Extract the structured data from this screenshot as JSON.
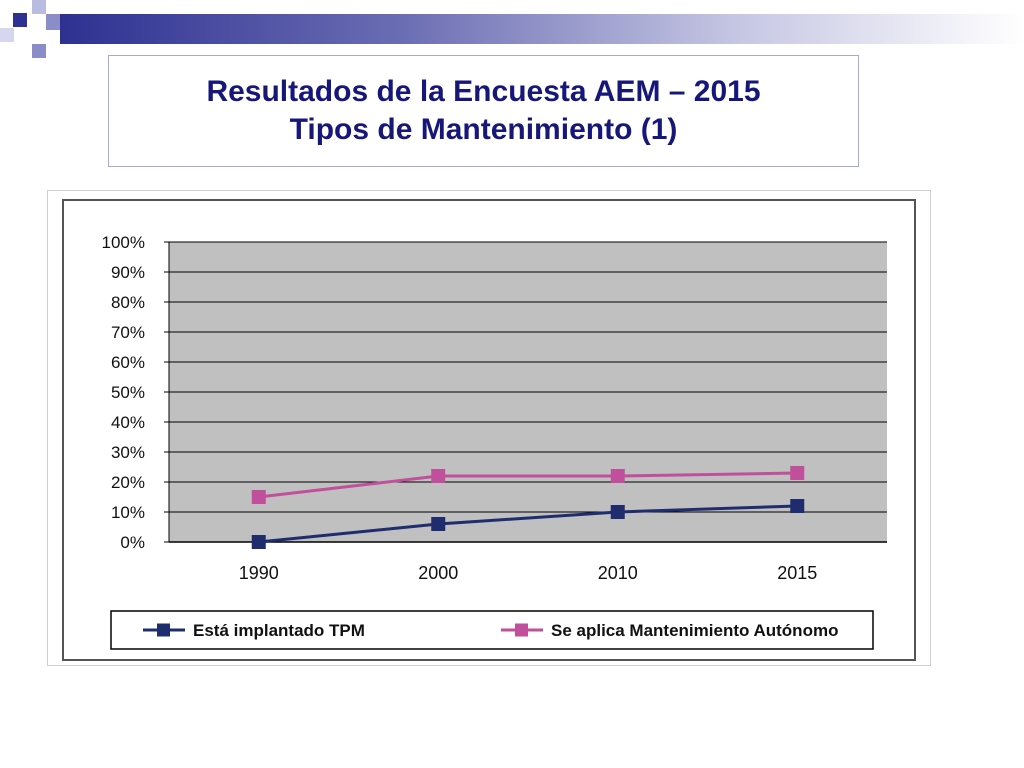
{
  "slide": {
    "title_line1": "Resultados de la Encuesta AEM – 2015",
    "title_line2": "Tipos de Mantenimiento (1)"
  },
  "colors": {
    "title": "#17177a",
    "accent_dark": "#2e3191",
    "accent_light": "#8b8dc8",
    "plot_bg": "#c0c0c0",
    "series1": "#1f2d6e",
    "series2": "#c0509b"
  },
  "chart_data": {
    "type": "line",
    "title": "",
    "xlabel": "",
    "ylabel": "",
    "categories": [
      "1990",
      "2000",
      "2010",
      "2015"
    ],
    "ylim": [
      0,
      100
    ],
    "yticks": [
      0,
      10,
      20,
      30,
      40,
      50,
      60,
      70,
      80,
      90,
      100
    ],
    "ytick_labels": [
      "0%",
      "10%",
      "20%",
      "30%",
      "40%",
      "50%",
      "60%",
      "70%",
      "80%",
      "90%",
      "100%"
    ],
    "grid": true,
    "legend_position": "bottom",
    "series": [
      {
        "name": "Está implantado TPM",
        "values": [
          0,
          6,
          10,
          12
        ],
        "color": "#1f2d6e",
        "marker": "square"
      },
      {
        "name": "Se aplica Mantenimiento Autónomo",
        "values": [
          15,
          22,
          22,
          23
        ],
        "color": "#c0509b",
        "marker": "square"
      }
    ]
  }
}
